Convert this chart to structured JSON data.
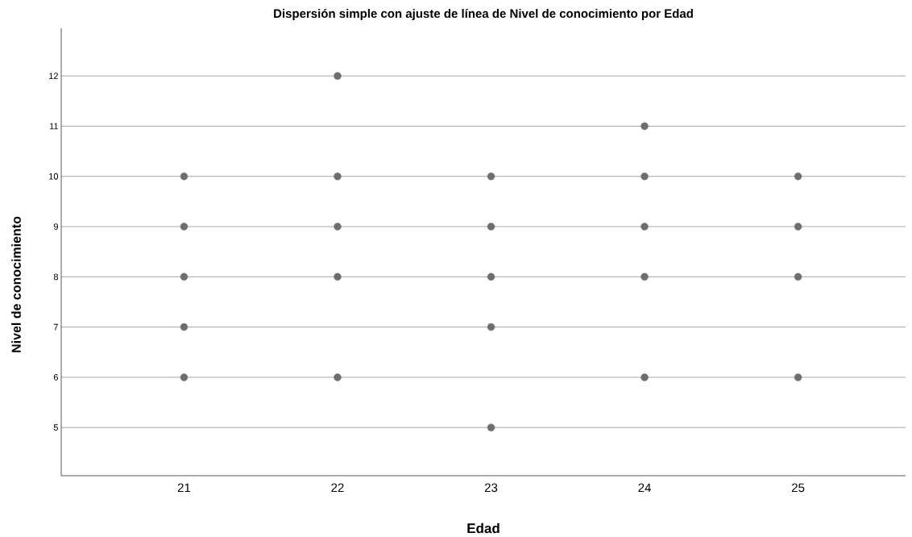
{
  "chart_data": {
    "type": "scatter",
    "title": "Dispersión simple con ajuste de línea de Nivel de conocimiento por Edad",
    "xlabel": "Edad",
    "ylabel": "Nivel de conocimiento",
    "x": [
      21,
      21,
      21,
      21,
      21,
      22,
      22,
      22,
      22,
      22,
      23,
      23,
      23,
      23,
      23,
      24,
      24,
      24,
      24,
      24,
      25,
      25,
      25,
      25
    ],
    "values": [
      10,
      9,
      8,
      7,
      6,
      12,
      10,
      9,
      8,
      6,
      10,
      9,
      8,
      7,
      5,
      11,
      10,
      9,
      8,
      6,
      10,
      9,
      8,
      6
    ],
    "color": "#6e6e6e",
    "marker": "circle",
    "grid": "y",
    "xlim": [
      20.2,
      25.7
    ],
    "xticks": [
      21,
      22,
      23,
      24,
      25
    ],
    "ylim": [
      4.04,
      12.95
    ],
    "yticks": [
      5,
      6,
      7,
      8,
      9,
      10,
      11,
      12
    ]
  }
}
